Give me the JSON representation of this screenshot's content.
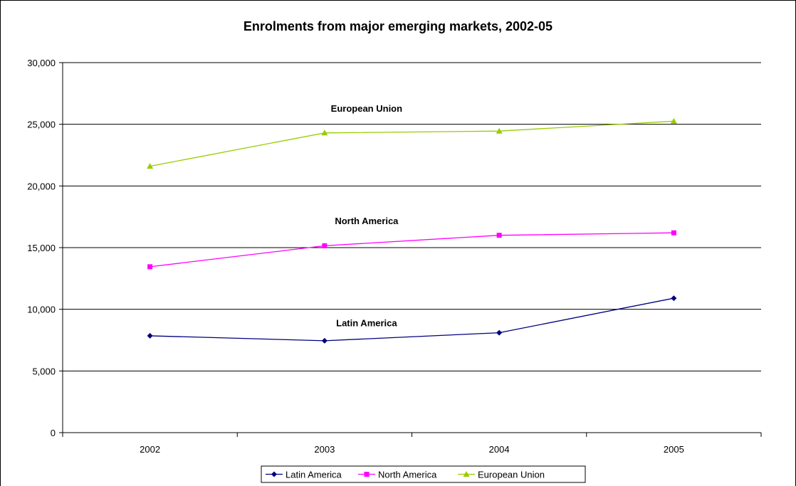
{
  "chart_data": {
    "type": "line",
    "title": "Enrolments from major emerging markets, 2002-05",
    "xlabel": "",
    "ylabel": "",
    "categories": [
      "2002",
      "2003",
      "2004",
      "2005"
    ],
    "ylim": [
      0,
      30000
    ],
    "yticks": [
      0,
      5000,
      10000,
      15000,
      20000,
      25000,
      30000
    ],
    "ytick_labels": [
      "0",
      "5,000",
      "10,000",
      "15,000",
      "20,000",
      "25,000",
      "30,000"
    ],
    "grid": "horizontal",
    "legend_position": "bottom",
    "series": [
      {
        "name": "Latin America",
        "values": [
          7850,
          7450,
          8100,
          10900
        ],
        "color": "#000080",
        "marker": "diamond"
      },
      {
        "name": "North America",
        "values": [
          13450,
          15150,
          16000,
          16200
        ],
        "color": "#ff00ff",
        "marker": "square"
      },
      {
        "name": "European Union",
        "values": [
          21600,
          24300,
          24450,
          25250
        ],
        "color": "#99cc00",
        "marker": "triangle"
      }
    ],
    "annotations": [
      {
        "text": "European Union",
        "category": "2003",
        "value": 26300
      },
      {
        "text": "North America",
        "category": "2003",
        "value": 17200
      },
      {
        "text": "Latin America",
        "category": "2003",
        "value": 8900
      }
    ]
  }
}
